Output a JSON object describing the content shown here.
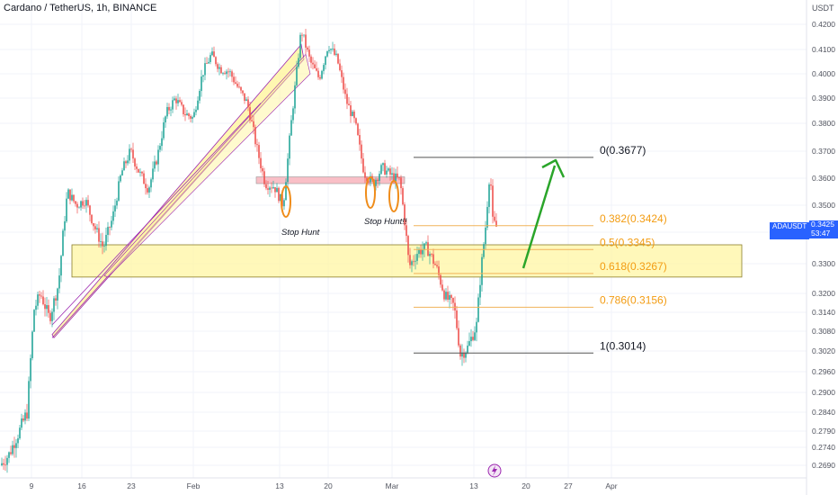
{
  "header": {
    "title": "Cardano / TetherUS, 1h, BINANCE",
    "currency": "USDT"
  },
  "chart_data": {
    "type": "candlestick",
    "symbol": "ADAUSDT",
    "interval": "1h",
    "ylim": [
      0.266,
      0.425
    ],
    "y_ticks": [
      "0.4200",
      "0.4100",
      "0.4000",
      "0.3900",
      "0.3800",
      "0.3700",
      "0.3600",
      "0.3500",
      "0.3400",
      "0.3300",
      "0.3200",
      "0.3140",
      "0.3080",
      "0.3020",
      "0.2960",
      "0.2900",
      "0.2840",
      "0.2790",
      "0.2740",
      "0.2690"
    ],
    "y_tick_values": [
      0.42,
      0.41,
      0.4,
      0.39,
      0.38,
      0.37,
      0.36,
      0.35,
      0.34,
      0.33,
      0.32,
      0.314,
      0.308,
      0.302,
      0.296,
      0.29,
      0.284,
      0.279,
      0.274,
      0.269
    ],
    "x_ticks": [
      "9",
      "16",
      "23",
      "Feb",
      "13",
      "20",
      "Mar",
      "13",
      "20",
      "27",
      "Apr"
    ],
    "price_path": [
      [
        0,
        0.269
      ],
      [
        10,
        0.272
      ],
      [
        20,
        0.278
      ],
      [
        30,
        0.284
      ],
      [
        38,
        0.315
      ],
      [
        45,
        0.32
      ],
      [
        55,
        0.312
      ],
      [
        65,
        0.323
      ],
      [
        75,
        0.355
      ],
      [
        85,
        0.35
      ],
      [
        95,
        0.352
      ],
      [
        105,
        0.342
      ],
      [
        115,
        0.335
      ],
      [
        125,
        0.345
      ],
      [
        135,
        0.362
      ],
      [
        145,
        0.37
      ],
      [
        155,
        0.362
      ],
      [
        165,
        0.356
      ],
      [
        175,
        0.368
      ],
      [
        185,
        0.384
      ],
      [
        195,
        0.39
      ],
      [
        205,
        0.384
      ],
      [
        215,
        0.382
      ],
      [
        225,
        0.4
      ],
      [
        235,
        0.408
      ],
      [
        245,
        0.402
      ],
      [
        255,
        0.401
      ],
      [
        265,
        0.394
      ],
      [
        275,
        0.388
      ],
      [
        285,
        0.372
      ],
      [
        295,
        0.358
      ],
      [
        305,
        0.357
      ],
      [
        315,
        0.35
      ],
      [
        325,
        0.384
      ],
      [
        335,
        0.418
      ],
      [
        345,
        0.405
      ],
      [
        355,
        0.398
      ],
      [
        365,
        0.412
      ],
      [
        375,
        0.406
      ],
      [
        385,
        0.389
      ],
      [
        395,
        0.38
      ],
      [
        405,
        0.362
      ],
      [
        415,
        0.358
      ],
      [
        425,
        0.364
      ],
      [
        435,
        0.361
      ],
      [
        445,
        0.359
      ],
      [
        455,
        0.329
      ],
      [
        465,
        0.334
      ],
      [
        475,
        0.335
      ],
      [
        485,
        0.329
      ],
      [
        495,
        0.319
      ],
      [
        505,
        0.316
      ],
      [
        512,
        0.301
      ],
      [
        520,
        0.303
      ],
      [
        530,
        0.31
      ],
      [
        535,
        0.328
      ],
      [
        540,
        0.342
      ],
      [
        545,
        0.364
      ],
      [
        548,
        0.344
      ],
      [
        552,
        0.342
      ]
    ],
    "last_price": "0.3425",
    "countdown": "53:47",
    "symbol_label": "ADAUSDT",
    "fib_levels": [
      {
        "label": "0(0.3677)",
        "value": 0.3677,
        "color": "#131722",
        "line": "#555555"
      },
      {
        "label": "0.382(0.3424)",
        "value": 0.3424,
        "color": "#f39c12",
        "line": "#f0b35a"
      },
      {
        "label": "0.5(0.3345)",
        "value": 0.3345,
        "color": "#f39c12",
        "line": "#f0b35a"
      },
      {
        "label": "0.618(0.3267)",
        "value": 0.3267,
        "color": "#f39c12",
        "line": "#f0b35a"
      },
      {
        "label": "0.786(0.3156)",
        "value": 0.3156,
        "color": "#f39c12",
        "line": "#f0b35a"
      },
      {
        "label": "1(0.3014)",
        "value": 0.3014,
        "color": "#131722",
        "line": "#555555"
      }
    ],
    "annotations": [
      "Stop Hunt",
      "Stop Hunt!!"
    ],
    "zone_colors": {
      "yellow": "#fff59d",
      "pink": "#f8b4bc",
      "purple": "#9c27b0",
      "orange": "#ef8c1a",
      "green": "#2aa52a"
    },
    "up_color": "#26a69a",
    "down_color": "#ef5350"
  }
}
